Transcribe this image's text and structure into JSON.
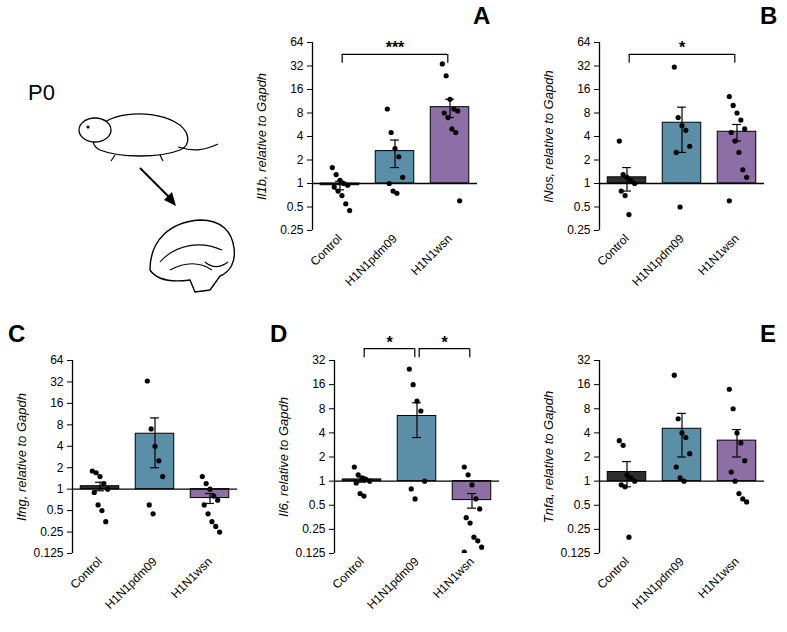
{
  "illustration": {
    "label": "P0"
  },
  "chart_data": [
    {
      "type": "bar",
      "panel": "A",
      "y_label": "Il1b, relative to Gapdh",
      "categories": [
        "Control",
        "H1N1pdm09",
        "H1N1wsn"
      ],
      "values": [
        0.95,
        2.6,
        9.5
      ],
      "errors": [
        0.12,
        1.0,
        2.5
      ],
      "points": [
        [
          1.6,
          1.3,
          1.1,
          1.0,
          0.95,
          0.9,
          0.8,
          0.7,
          0.55,
          0.45
        ],
        [
          9,
          4.5,
          2.8,
          2.2,
          1.2,
          1.0,
          0.8,
          0.75
        ],
        [
          34,
          24,
          12,
          9,
          8.5,
          8,
          7,
          5,
          4.5,
          0.6
        ]
      ],
      "colors": [
        "#2e2e2e",
        "#5b8fa8",
        "#8e6fa5"
      ],
      "log": "y",
      "ylim": [
        0.25,
        64
      ],
      "yticks": [
        0.25,
        0.5,
        1,
        2,
        4,
        8,
        16,
        32,
        64
      ],
      "bar_base": 1,
      "significance": [
        {
          "from": "Control",
          "to": "H1N1wsn",
          "label": "***",
          "y": 45
        }
      ]
    },
    {
      "type": "bar",
      "panel": "B",
      "y_label": "iNos, relative to Gapdh",
      "categories": [
        "Control",
        "H1N1pdm09",
        "H1N1wsn"
      ],
      "values": [
        1.2,
        6,
        4.6
      ],
      "errors": [
        0.4,
        3.5,
        1.1
      ],
      "points": [
        [
          3.5,
          1.3,
          1.2,
          1.1,
          1.0,
          0.8,
          0.7,
          0.4
        ],
        [
          31,
          7,
          5.5,
          4.8,
          3,
          2.5,
          0.5
        ],
        [
          13,
          10,
          8,
          6.5,
          5,
          4.5,
          3.5,
          2.5,
          1.5,
          1.2,
          0.6
        ]
      ],
      "colors": [
        "#2e2e2e",
        "#5b8fa8",
        "#8e6fa5"
      ],
      "log": "y",
      "ylim": [
        0.25,
        64
      ],
      "yticks": [
        0.25,
        0.5,
        1,
        2,
        4,
        8,
        16,
        32,
        64
      ],
      "bar_base": 1,
      "significance": [
        {
          "from": "Control",
          "to": "H1N1wsn",
          "label": "*",
          "y": 45
        }
      ]
    },
    {
      "type": "bar",
      "panel": "C",
      "y_label": "Ifng, relative to Gapdh",
      "categories": [
        "Control",
        "H1N1pdm09",
        "H1N1wsn"
      ],
      "values": [
        1.1,
        6,
        0.75
      ],
      "errors": [
        0.15,
        4,
        0.12
      ],
      "points": [
        [
          1.8,
          1.7,
          1.5,
          1.2,
          1.0,
          0.9,
          0.6,
          0.5,
          0.35
        ],
        [
          33,
          7,
          4,
          2.5,
          1.5,
          0.6,
          0.45
        ],
        [
          1.5,
          1.2,
          1.0,
          0.8,
          0.7,
          0.6,
          0.45,
          0.35,
          0.3,
          0.25
        ]
      ],
      "colors": [
        "#2e2e2e",
        "#5b8fa8",
        "#8e6fa5"
      ],
      "log": "y",
      "ylim": [
        0.125,
        64
      ],
      "yticks": [
        0.125,
        0.25,
        0.5,
        1,
        2,
        4,
        8,
        16,
        32,
        64
      ],
      "bar_base": 1,
      "significance": []
    },
    {
      "type": "bar",
      "panel": "D",
      "y_label": "Il6, relative to Gapdh",
      "categories": [
        "Control",
        "H1N1pdm09",
        "H1N1wsn"
      ],
      "values": [
        1.05,
        6.5,
        0.58
      ],
      "errors": [
        0.08,
        3,
        0.12
      ],
      "points": [
        [
          1.5,
          1.2,
          1.1,
          1.05,
          1.0,
          0.95,
          0.7,
          0.65
        ],
        [
          25,
          16,
          10,
          7.5,
          1.0,
          0.8,
          0.6
        ],
        [
          1.5,
          1.2,
          0.9,
          0.6,
          0.45,
          0.35,
          0.3,
          0.2,
          0.18,
          0.15,
          0.13
        ]
      ],
      "colors": [
        "#2e2e2e",
        "#5b8fa8",
        "#8e6fa5"
      ],
      "log": "y",
      "ylim": [
        0.125,
        32
      ],
      "yticks": [
        0.125,
        0.25,
        0.5,
        1,
        2,
        4,
        8,
        16,
        32
      ],
      "bar_base": 1,
      "significance": [
        {
          "from": "Control",
          "to": "H1N1pdm09",
          "label": "*",
          "y": 45
        },
        {
          "from": "H1N1pdm09",
          "to": "H1N1wsn",
          "label": "*",
          "y": 45
        }
      ]
    },
    {
      "type": "bar",
      "panel": "E",
      "y_label": "Tnfa, relative to Gapdh",
      "categories": [
        "Control",
        "H1N1pdm09",
        "H1N1wsn"
      ],
      "values": [
        1.3,
        4.5,
        3.2
      ],
      "errors": [
        0.45,
        2.5,
        1.2
      ],
      "points": [
        [
          3.2,
          2.8,
          1.2,
          1.1,
          1.0,
          0.9,
          0.85,
          0.2
        ],
        [
          21,
          6,
          4,
          3.5,
          2.2,
          1.5,
          1.1,
          1.0
        ],
        [
          14,
          8,
          4,
          3,
          1.8,
          1.3,
          1.0,
          0.7,
          0.6,
          0.55
        ]
      ],
      "colors": [
        "#2e2e2e",
        "#5b8fa8",
        "#8e6fa5"
      ],
      "log": "y",
      "ylim": [
        0.125,
        32
      ],
      "yticks": [
        0.125,
        0.25,
        0.5,
        1,
        2,
        4,
        8,
        16,
        32
      ],
      "bar_base": 1,
      "significance": []
    }
  ]
}
